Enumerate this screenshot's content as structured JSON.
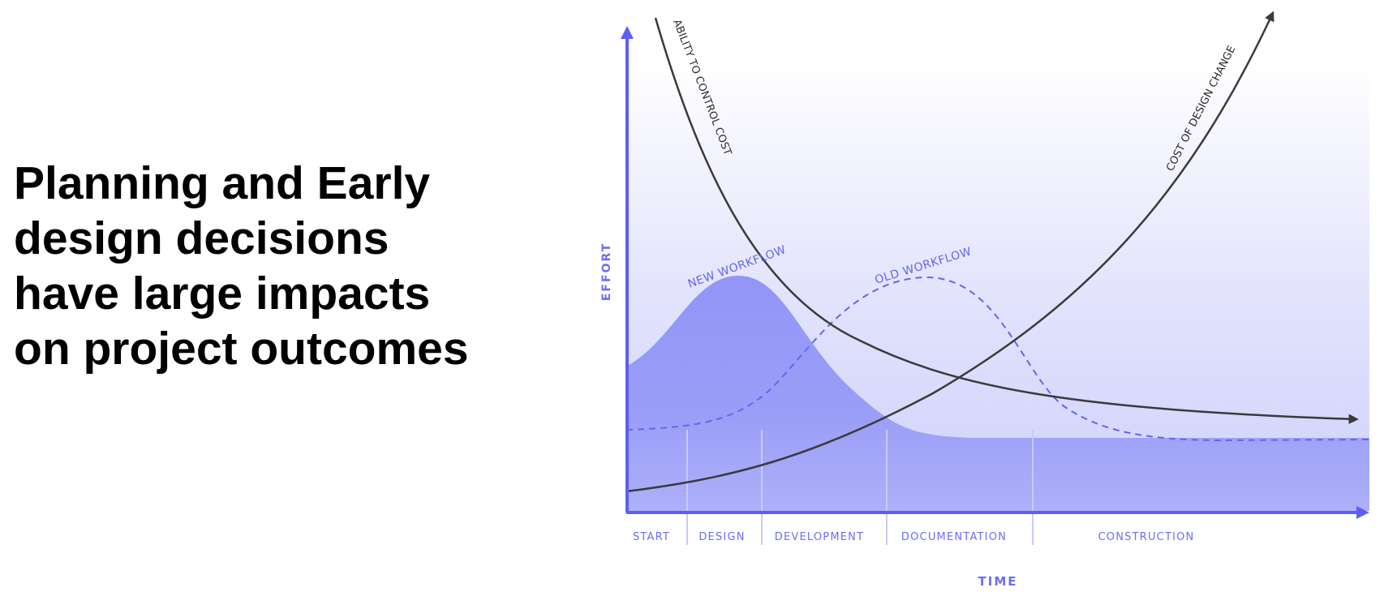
{
  "headline": {
    "lines": [
      "Planning and Early",
      "design decisions",
      "have large impacts",
      "on project outcomes"
    ]
  },
  "diagram": {
    "axes": {
      "x_title": "TIME",
      "y_title": "EFFORT"
    },
    "phases": [
      "START",
      "DESIGN",
      "DEVELOPMENT",
      "DOCUMENTATION",
      "CONSTRUCTION"
    ],
    "curves": {
      "ability": "ABILITY TO CONTROL COST",
      "cost": "COST OF DESIGN CHANGE"
    },
    "workflows": {
      "new": "NEW WORKFLOW",
      "old": "OLD WORKFLOW"
    },
    "colors": {
      "accent": "#6366f1",
      "axis": "#5b5ff5",
      "curve": "#3a3a3a",
      "new_workflow_fill": "#9295f7",
      "phase_label": "#6b6ef2"
    }
  }
}
